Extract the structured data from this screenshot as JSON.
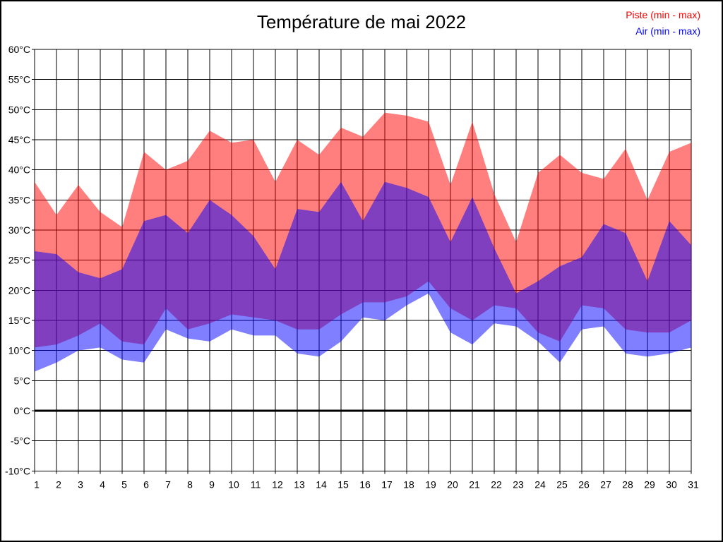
{
  "title": "Température de mai 2022",
  "legend": {
    "piste": {
      "label": "Piste (min - max)",
      "color": "#ff0000"
    },
    "air": {
      "label": "Air (min - max)",
      "color": "#0000ff"
    }
  },
  "chart_data": {
    "type": "area",
    "title": "Température de mai 2022",
    "x": [
      1,
      2,
      3,
      4,
      5,
      6,
      7,
      8,
      9,
      10,
      11,
      12,
      13,
      14,
      15,
      16,
      17,
      18,
      19,
      20,
      21,
      22,
      23,
      24,
      25,
      26,
      27,
      28,
      29,
      30,
      31
    ],
    "xlabel": "",
    "ylabel": "",
    "ylim": [
      -10,
      60
    ],
    "y_tick_step": 5,
    "y_unit": "°C",
    "grid": true,
    "zero_line_emphasis": true,
    "legend_position": "top-right",
    "series": [
      {
        "name": "Piste (min - max)",
        "role": "piste",
        "fill": "rgba(255,0,0,0.5)",
        "min": [
          10.5,
          11,
          12.5,
          14.5,
          11.5,
          11,
          17,
          13.5,
          14.5,
          16,
          15.5,
          15,
          13.5,
          13.5,
          16,
          18,
          18,
          19,
          21.5,
          17,
          15,
          17.5,
          17,
          13,
          11.5,
          17.5,
          17,
          13.5,
          13,
          13,
          15
        ],
        "max": [
          38,
          32.5,
          37.5,
          33,
          30.5,
          43,
          40,
          41.5,
          46.5,
          44.5,
          45,
          38,
          45,
          42.5,
          47,
          45.5,
          49.5,
          49,
          48,
          37.5,
          48,
          36,
          28,
          39.5,
          42.5,
          39.5,
          38.5,
          43.5,
          35,
          43,
          44.5
        ]
      },
      {
        "name": "Air (min - max)",
        "role": "air",
        "fill": "rgba(0,0,255,0.5)",
        "min": [
          6.5,
          8,
          10,
          10.5,
          8.5,
          8,
          13.5,
          12,
          11.5,
          13.5,
          12.5,
          12.5,
          9.5,
          9,
          11.5,
          15.5,
          15,
          17.5,
          19.5,
          13,
          11,
          14.5,
          14,
          11.5,
          8,
          13.5,
          14,
          9.5,
          9,
          9.5,
          10.5
        ],
        "max": [
          26.5,
          26,
          23,
          22,
          23.5,
          31.5,
          32.5,
          29.5,
          35,
          32.5,
          29,
          23.5,
          33.5,
          33,
          38,
          31.5,
          38,
          37,
          35.5,
          28,
          35.5,
          27,
          19.5,
          21.5,
          24,
          25.5,
          31,
          29.5,
          21.5,
          31.5,
          27.5
        ]
      }
    ]
  }
}
